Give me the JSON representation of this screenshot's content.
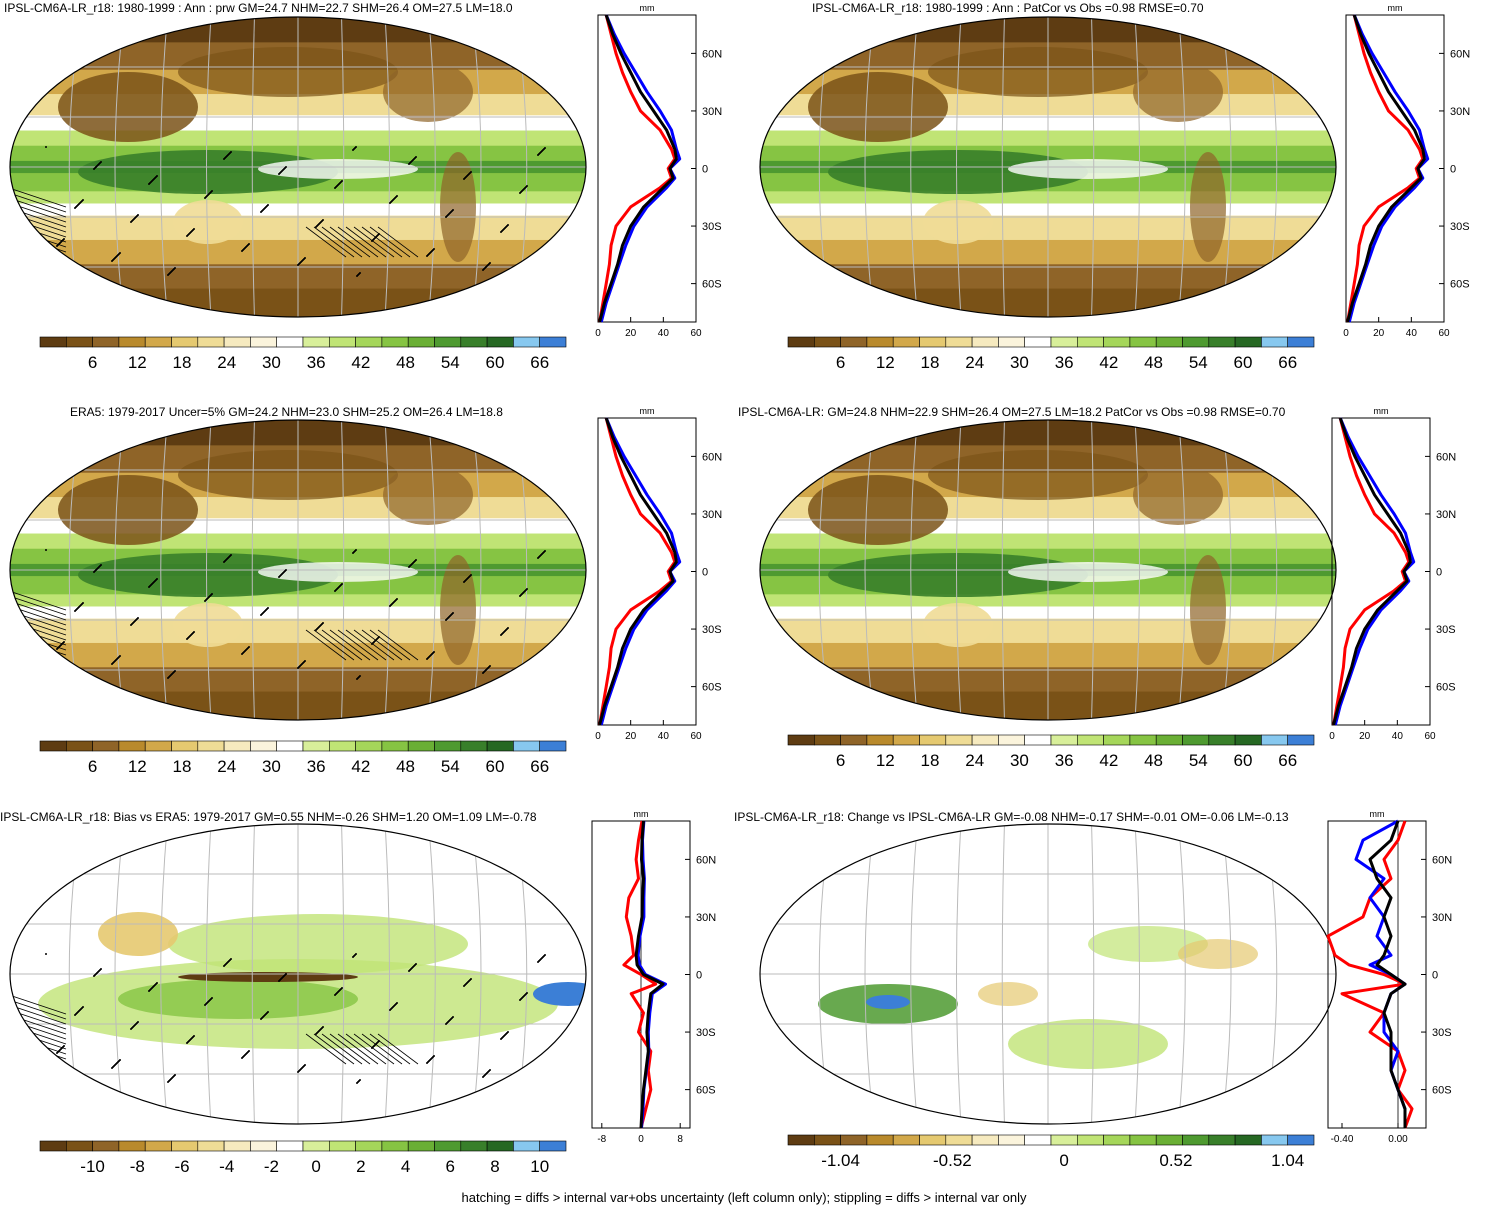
{
  "colors": {
    "obs": "#000000",
    "model": "#0000ff",
    "ref": "#ff0000",
    "palette": [
      "#5e3c12",
      "#7a5217",
      "#8f6428",
      "#b98a2c",
      "#d2a84a",
      "#e5c970",
      "#efdc96",
      "#f6eabf",
      "#fbf4dc",
      "#ffffff",
      "#d8ef9a",
      "#c0e475",
      "#a5d65a",
      "#86c443",
      "#6aaf35",
      "#4e9a30",
      "#387f2a",
      "#266823",
      "#87c8ef",
      "#3c7fd6"
    ]
  },
  "panels": [
    {
      "id": "p1",
      "title": "IPSL-CM6A-LR_r18: 1980-1999 : Ann : prw GM=24.7 NHM=22.7 SHM=26.4 OM=27.5 LM=18.0",
      "kind": "mean",
      "hatched": true,
      "colorbar_labels": [
        "6",
        "12",
        "18",
        "24",
        "30",
        "36",
        "42",
        "48",
        "54",
        "60",
        "66"
      ],
      "zonal": {
        "unit": "mm",
        "xlim": [
          0,
          60
        ],
        "xticks": [
          "0",
          "20",
          "40",
          "60"
        ],
        "lat_labels": [
          "60N",
          "30N",
          "0",
          "30S",
          "60S"
        ],
        "lats": [
          80,
          70,
          60,
          50,
          40,
          30,
          20,
          10,
          5,
          0,
          -5,
          -10,
          -20,
          -30,
          -40,
          -50,
          -60,
          -70,
          -80
        ],
        "obs": [
          5,
          9,
          14,
          20,
          26,
          34,
          42,
          47,
          48,
          44,
          46,
          40,
          28,
          20,
          15,
          12,
          8,
          4,
          1
        ],
        "model": [
          5,
          10,
          16,
          23,
          30,
          38,
          45,
          48,
          50,
          44,
          47,
          42,
          30,
          22,
          17,
          13,
          9,
          5,
          2
        ],
        "ref": [
          5,
          8,
          11,
          15,
          20,
          26,
          38,
          45,
          47,
          43,
          45,
          38,
          20,
          11,
          8,
          7,
          5,
          3,
          1
        ]
      }
    },
    {
      "id": "p2",
      "title": "IPSL-CM6A-LR_r18: 1980-1999 : Ann : PatCor vs Obs =0.98 RMSE=0.70",
      "kind": "mean",
      "hatched": false,
      "colorbar_labels": [
        "6",
        "12",
        "18",
        "24",
        "30",
        "36",
        "42",
        "48",
        "54",
        "60",
        "66"
      ],
      "zonal": {
        "unit": "mm",
        "xlim": [
          0,
          60
        ],
        "xticks": [
          "0",
          "20",
          "40",
          "60"
        ],
        "lat_labels": [
          "60N",
          "30N",
          "0",
          "30S",
          "60S"
        ],
        "lats": [
          80,
          70,
          60,
          50,
          40,
          30,
          20,
          10,
          5,
          0,
          -5,
          -10,
          -20,
          -30,
          -40,
          -50,
          -60,
          -70,
          -80
        ],
        "obs": [
          5,
          9,
          14,
          20,
          26,
          34,
          42,
          47,
          48,
          44,
          46,
          40,
          28,
          20,
          15,
          12,
          8,
          4,
          1
        ],
        "model": [
          5,
          10,
          16,
          23,
          30,
          38,
          45,
          48,
          50,
          44,
          47,
          42,
          30,
          22,
          17,
          13,
          9,
          5,
          2
        ],
        "ref": [
          5,
          8,
          11,
          15,
          20,
          26,
          38,
          45,
          47,
          43,
          45,
          38,
          20,
          11,
          8,
          7,
          5,
          3,
          1
        ]
      }
    },
    {
      "id": "p3",
      "title": "ERA5: 1979-2017 Uncer=5% GM=24.2 NHM=23.0 SHM=25.2 OM=26.4 LM=18.8",
      "kind": "mean",
      "hatched": true,
      "colorbar_labels": [
        "6",
        "12",
        "18",
        "24",
        "30",
        "36",
        "42",
        "48",
        "54",
        "60",
        "66"
      ],
      "zonal": {
        "unit": "mm",
        "xlim": [
          0,
          60
        ],
        "xticks": [
          "0",
          "20",
          "40",
          "60"
        ],
        "lat_labels": [
          "60N",
          "30N",
          "0",
          "30S",
          "60S"
        ],
        "lats": [
          80,
          70,
          60,
          50,
          40,
          30,
          20,
          10,
          5,
          0,
          -5,
          -10,
          -20,
          -30,
          -40,
          -50,
          -60,
          -70,
          -80
        ],
        "obs": [
          5,
          9,
          14,
          20,
          26,
          34,
          42,
          47,
          48,
          44,
          46,
          40,
          28,
          20,
          15,
          12,
          8,
          4,
          1
        ],
        "model": [
          5,
          10,
          16,
          23,
          30,
          38,
          45,
          48,
          50,
          44,
          47,
          42,
          30,
          22,
          17,
          13,
          9,
          5,
          2
        ],
        "ref": [
          5,
          8,
          11,
          15,
          20,
          26,
          38,
          45,
          47,
          43,
          45,
          38,
          20,
          11,
          8,
          7,
          5,
          3,
          1
        ]
      }
    },
    {
      "id": "p4",
      "title": "IPSL-CM6A-LR: GM=24.8 NHM=22.9 SHM=26.4 OM=27.5 LM=18.2 PatCor vs Obs =0.98 RMSE=0.70",
      "kind": "mean",
      "hatched": false,
      "colorbar_labels": [
        "6",
        "12",
        "18",
        "24",
        "30",
        "36",
        "42",
        "48",
        "54",
        "60",
        "66"
      ],
      "zonal": {
        "unit": "mm",
        "xlim": [
          0,
          60
        ],
        "xticks": [
          "0",
          "20",
          "40",
          "60"
        ],
        "lat_labels": [
          "60N",
          "30N",
          "0",
          "30S",
          "60S"
        ],
        "lats": [
          80,
          70,
          60,
          50,
          40,
          30,
          20,
          10,
          5,
          0,
          -5,
          -10,
          -20,
          -30,
          -40,
          -50,
          -60,
          -70,
          -80
        ],
        "obs": [
          5,
          9,
          14,
          20,
          26,
          34,
          42,
          47,
          48,
          44,
          46,
          40,
          28,
          20,
          15,
          12,
          8,
          4,
          1
        ],
        "model": [
          5,
          10,
          16,
          23,
          30,
          38,
          45,
          48,
          50,
          44,
          47,
          42,
          30,
          22,
          17,
          13,
          9,
          5,
          2
        ],
        "ref": [
          5,
          8,
          11,
          15,
          20,
          26,
          38,
          45,
          47,
          43,
          45,
          38,
          20,
          11,
          8,
          7,
          5,
          3,
          1
        ]
      }
    },
    {
      "id": "p5",
      "title": "IPSL-CM6A-LR_r18: Bias vs ERA5: 1979-2017 GM=0.55 NHM=-0.26 SHM=1.20 OM=1.09 LM=-0.78",
      "kind": "bias",
      "hatched": true,
      "colorbar_labels": [
        "-10",
        "-8",
        "-6",
        "-4",
        "-2",
        "0",
        "2",
        "4",
        "6",
        "8",
        "10"
      ],
      "zonal": {
        "unit": "mm",
        "xlim": [
          -10,
          10
        ],
        "xticks": [
          "-8",
          "0",
          "8"
        ],
        "lat_labels": [
          "60N",
          "30N",
          "0",
          "30S",
          "60S"
        ],
        "lats": [
          80,
          70,
          60,
          50,
          40,
          30,
          20,
          10,
          5,
          0,
          -5,
          -10,
          -20,
          -30,
          -40,
          -50,
          -60,
          -70,
          -80
        ],
        "obs": [
          0.5,
          0.2,
          0.1,
          0.5,
          0.3,
          0.2,
          -0.5,
          -1.0,
          -0.8,
          0.5,
          4.5,
          2.0,
          1.5,
          1.2,
          1.5,
          1.0,
          0.5,
          0.2,
          0.0
        ],
        "model": [
          0.6,
          0.3,
          0.4,
          0.7,
          0.6,
          0.6,
          -0.2,
          -0.6,
          -0.3,
          0.9,
          5.0,
          2.3,
          1.8,
          1.5,
          1.6,
          1.1,
          0.6,
          0.4,
          0.1
        ],
        "ref": [
          0.2,
          -0.5,
          -1.0,
          -0.5,
          -2.5,
          -3.0,
          -2.0,
          -1.5,
          -3.5,
          0.0,
          3.0,
          -2.0,
          0.5,
          -0.5,
          2.0,
          1.5,
          2.0,
          1.0,
          0.0
        ]
      }
    },
    {
      "id": "p6",
      "title": "IPSL-CM6A-LR_r18: Change vs IPSL-CM6A-LR GM=-0.08 NHM=-0.17 SHM=-0.01 OM=-0.06 LM=-0.13",
      "kind": "change",
      "hatched": false,
      "colorbar_labels": [
        "-1.04",
        "-0.52",
        "0",
        "0.52",
        "1.04"
      ],
      "zonal": {
        "unit": "mm",
        "xlim": [
          -0.5,
          0.2
        ],
        "xticks": [
          "-0.40",
          "0.00"
        ],
        "lat_labels": [
          "60N",
          "30N",
          "0",
          "30S",
          "60S"
        ],
        "lats": [
          80,
          70,
          60,
          50,
          40,
          30,
          20,
          10,
          5,
          0,
          -5,
          -10,
          -20,
          -30,
          -40,
          -50,
          -60,
          -70,
          -80
        ],
        "obs": [
          0.0,
          -0.05,
          -0.2,
          -0.15,
          -0.05,
          -0.1,
          -0.05,
          -0.1,
          -0.15,
          -0.05,
          0.05,
          -0.05,
          -0.1,
          -0.05,
          -0.05,
          -0.05,
          0.0,
          0.05,
          0.05
        ],
        "model": [
          0.0,
          -0.25,
          -0.3,
          -0.1,
          -0.2,
          -0.1,
          -0.15,
          -0.05,
          -0.2,
          -0.05,
          0.05,
          -0.05,
          -0.1,
          -0.1,
          0.0,
          -0.05,
          0.0,
          0.05,
          0.05
        ],
        "ref": [
          0.05,
          0.0,
          -0.1,
          -0.05,
          -0.2,
          -0.25,
          -0.5,
          -0.45,
          -0.35,
          -0.1,
          0.05,
          -0.4,
          -0.1,
          -0.2,
          0.0,
          0.05,
          0.0,
          0.1,
          0.05
        ]
      }
    }
  ],
  "footer": "hatching = diffs > internal var+obs uncertainty (left column only); stippling = diffs > internal var only"
}
